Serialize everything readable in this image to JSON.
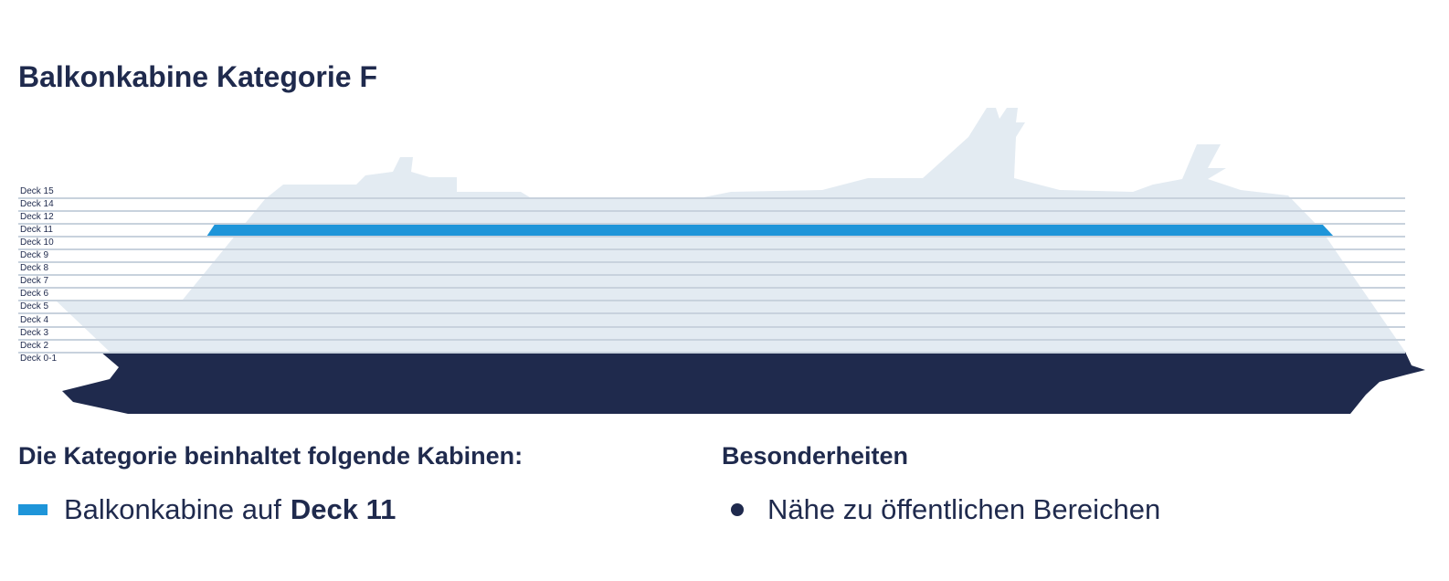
{
  "title": "Balkonkabine Kategorie F",
  "decks": [
    {
      "label": "Deck 15"
    },
    {
      "label": "Deck 14"
    },
    {
      "label": "Deck 12"
    },
    {
      "label": "Deck 11",
      "highlighted": true
    },
    {
      "label": "Deck 10"
    },
    {
      "label": "Deck 9"
    },
    {
      "label": "Deck 8"
    },
    {
      "label": "Deck 7"
    },
    {
      "label": "Deck 6"
    },
    {
      "label": "Deck 5"
    },
    {
      "label": "Deck 4"
    },
    {
      "label": "Deck 3"
    },
    {
      "label": "Deck 2"
    },
    {
      "label": "Deck 0-1"
    }
  ],
  "colors": {
    "hull": "#1f2a4d",
    "superstructure": "#e3ebf2",
    "highlight": "#1e95d9",
    "text": "#1f2a4d"
  },
  "cabins": {
    "heading": "Die Kategorie beinhaltet folgende Kabinen:",
    "item_prefix": "Balkonkabine auf",
    "item_deck": "Deck 11"
  },
  "features": {
    "heading": "Besonderheiten",
    "items": [
      "Nähe zu öffentlichen Bereichen"
    ]
  }
}
